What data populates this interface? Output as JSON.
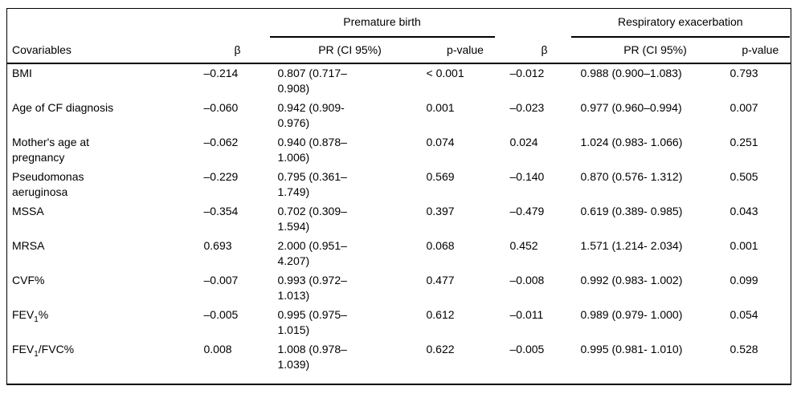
{
  "table": {
    "spanners": [
      "Premature birth",
      "Respiratory exacerbation"
    ],
    "columns": [
      "Covariables",
      "β",
      "PR (CI 95%)",
      "p-value",
      "β",
      "PR (CI 95%)",
      "p-value"
    ],
    "rows": [
      {
        "covariable": "BMI",
        "premature_birth": {
          "beta": "–0.214",
          "pr_ci_95": "0.807 (0.717–\n0.908)",
          "p_value": "< 0.001"
        },
        "respiratory_exacerbation": {
          "beta": "–0.012",
          "pr_ci_95": "0.988 (0.900–1.083)",
          "p_value": "0.793"
        }
      },
      {
        "covariable": "Age of CF diagnosis",
        "premature_birth": {
          "beta": "–0.060",
          "pr_ci_95": "0.942 (0.909-\n0.976)",
          "p_value": "0.001"
        },
        "respiratory_exacerbation": {
          "beta": "–0.023",
          "pr_ci_95": "0.977 (0.960–0.994)",
          "p_value": "0.007"
        }
      },
      {
        "covariable": "Mother's age at\npregnancy",
        "premature_birth": {
          "beta": "–0.062",
          "pr_ci_95": "0.940 (0.878–\n1.006)",
          "p_value": "0.074"
        },
        "respiratory_exacerbation": {
          "beta": "0.024",
          "pr_ci_95": "1.024 (0.983- 1.066)",
          "p_value": "0.251"
        }
      },
      {
        "covariable": "Pseudomonas\naeruginosa",
        "premature_birth": {
          "beta": "–0.229",
          "pr_ci_95": "0.795 (0.361–\n1.749)",
          "p_value": "0.569"
        },
        "respiratory_exacerbation": {
          "beta": "–0.140",
          "pr_ci_95": "0.870 (0.576- 1.312)",
          "p_value": "0.505"
        }
      },
      {
        "covariable": "MSSA",
        "premature_birth": {
          "beta": "–0.354",
          "pr_ci_95": "0.702 (0.309–\n1.594)",
          "p_value": "0.397"
        },
        "respiratory_exacerbation": {
          "beta": "–0.479",
          "pr_ci_95": "0.619 (0.389- 0.985)",
          "p_value": "0.043"
        }
      },
      {
        "covariable": "MRSA",
        "premature_birth": {
          "beta": "0.693",
          "pr_ci_95": "2.000 (0.951–\n4.207)",
          "p_value": "0.068"
        },
        "respiratory_exacerbation": {
          "beta": "0.452",
          "pr_ci_95": "1.571 (1.214- 2.034)",
          "p_value": "0.001"
        }
      },
      {
        "covariable": "CVF%",
        "premature_birth": {
          "beta": "–0.007",
          "pr_ci_95": "0.993 (0.972–\n1.013)",
          "p_value": "0.477"
        },
        "respiratory_exacerbation": {
          "beta": "–0.008",
          "pr_ci_95": "0.992 (0.983- 1.002)",
          "p_value": "0.099"
        }
      },
      {
        "covariable": "FEV₁%",
        "premature_birth": {
          "beta": "–0.005",
          "pr_ci_95": "0.995 (0.975–\n1.015)",
          "p_value": "0.612"
        },
        "respiratory_exacerbation": {
          "beta": "–0.011",
          "pr_ci_95": "0.989 (0.979- 1.000)",
          "p_value": "0.054"
        }
      },
      {
        "covariable": "FEV₁/FVC%",
        "premature_birth": {
          "beta": "0.008",
          "pr_ci_95": "1.008 (0.978–\n1.039)",
          "p_value": "0.622"
        },
        "respiratory_exacerbation": {
          "beta": "–0.005",
          "pr_ci_95": "0.995 (0.981- 1.010)",
          "p_value": "0.528"
        }
      }
    ]
  }
}
